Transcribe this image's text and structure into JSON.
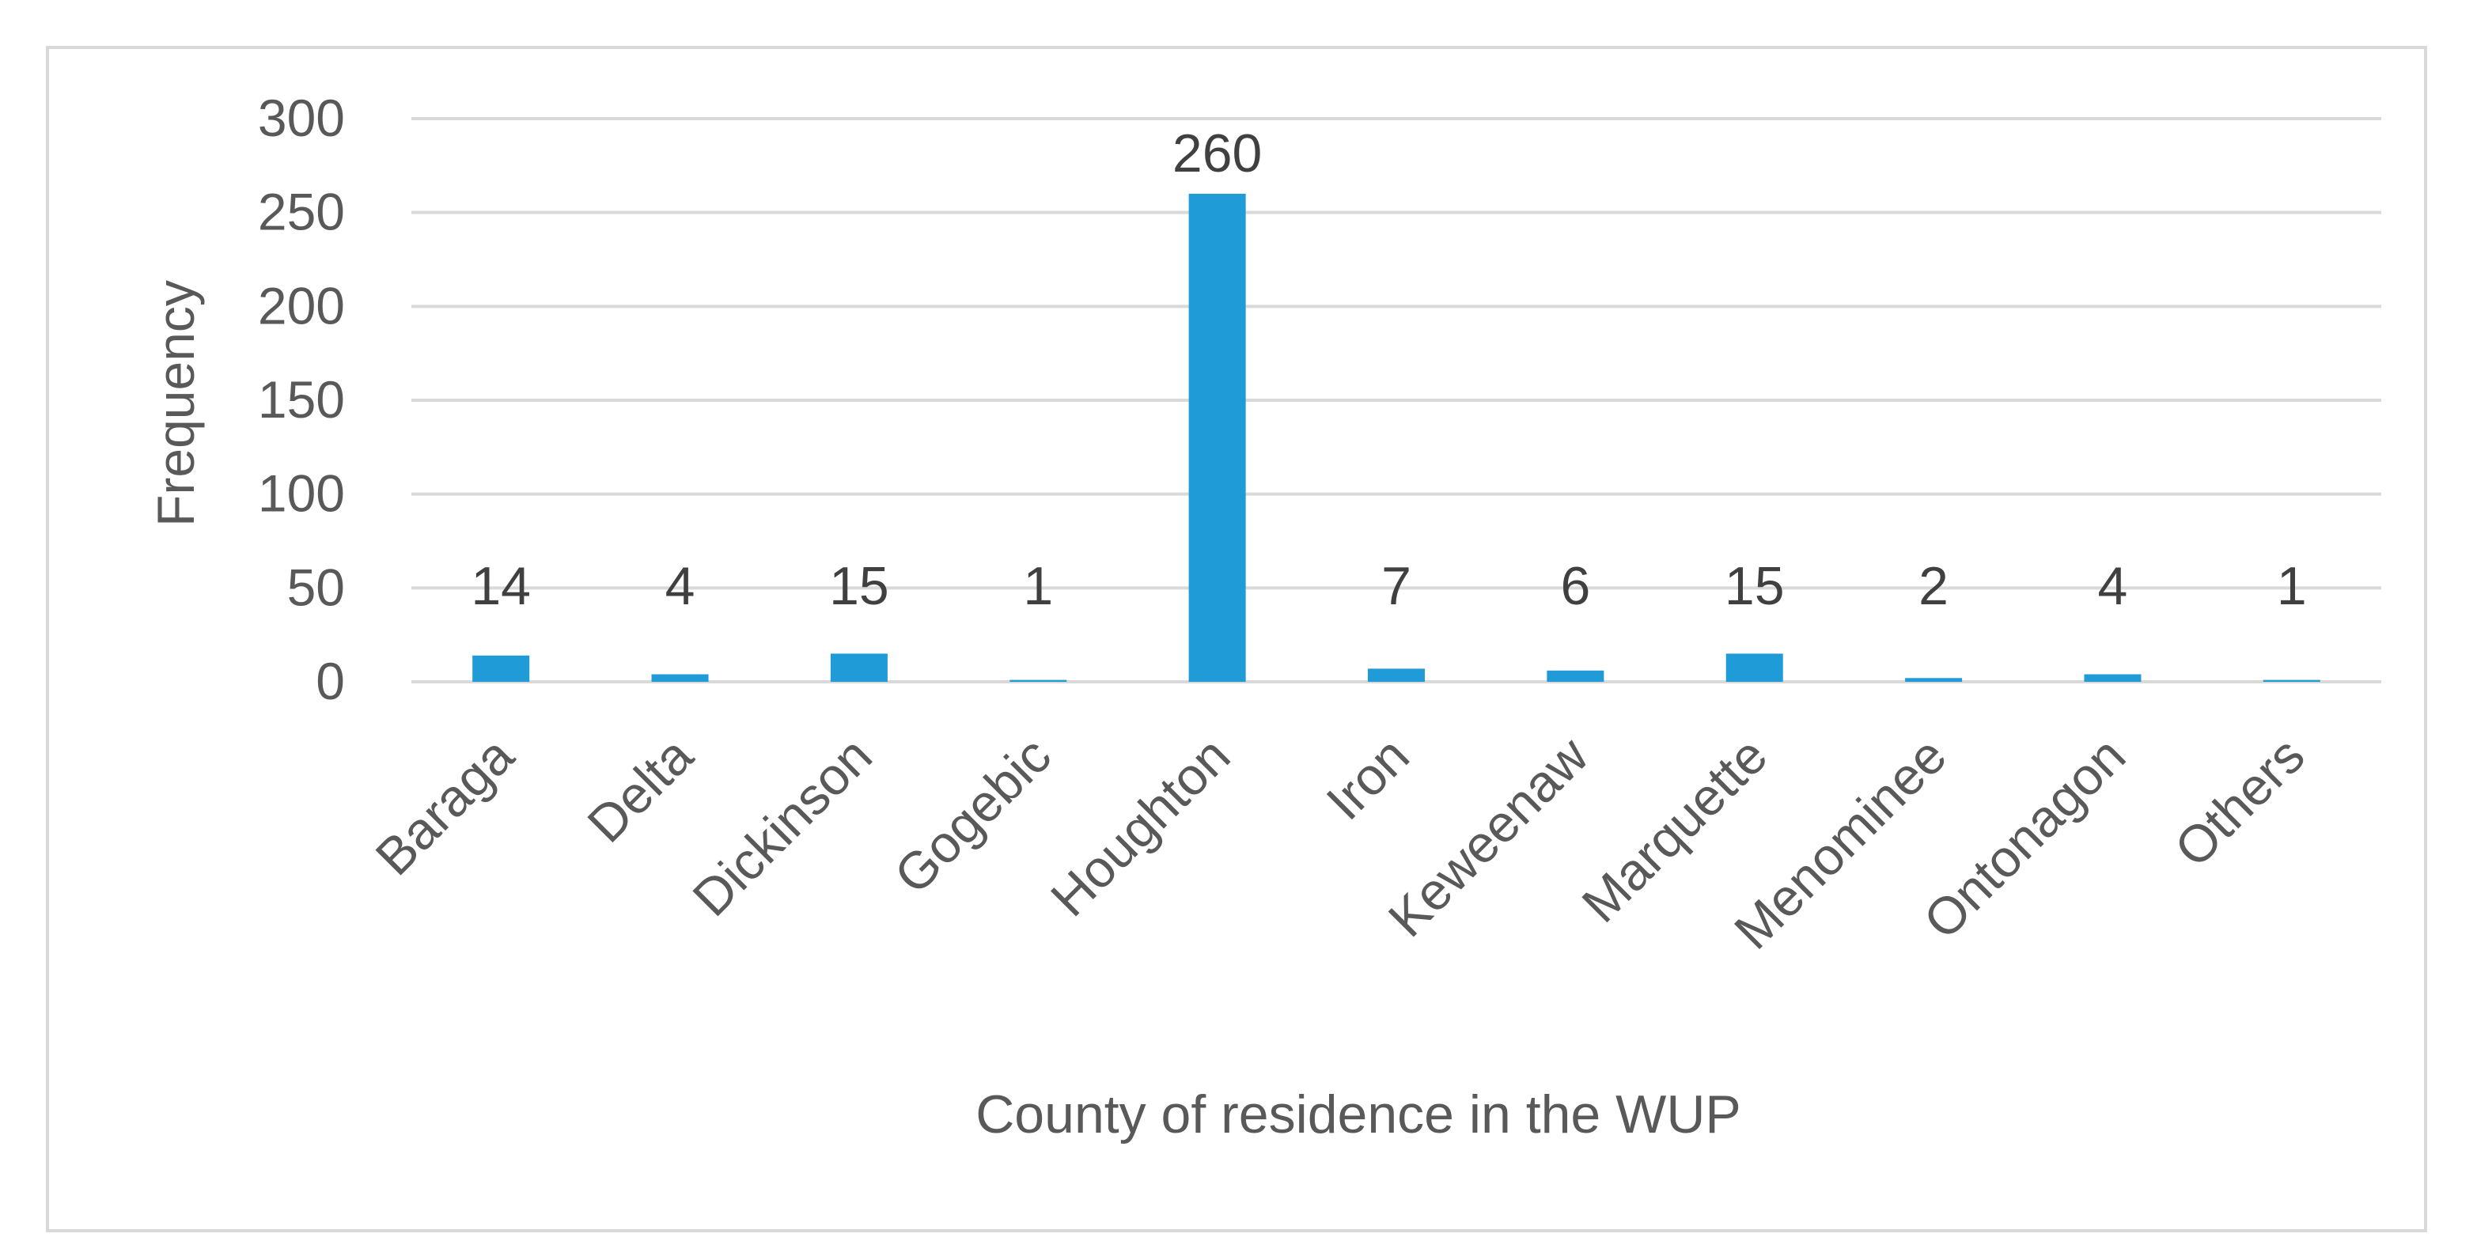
{
  "chart_data": {
    "type": "bar",
    "categories": [
      "Baraga",
      "Delta",
      "Dickinson",
      "Gogebic",
      "Houghton",
      "Iron",
      "Keweenaw",
      "Marquette",
      "Menominee",
      "Ontonagon",
      "Others"
    ],
    "values": [
      14,
      4,
      15,
      1,
      260,
      7,
      6,
      15,
      2,
      4,
      1
    ],
    "data_labels": [
      "14",
      "4",
      "15",
      "1",
      "260",
      "7",
      "6",
      "15",
      "2",
      "4",
      "1"
    ],
    "xlabel": "County of residence in the WUP",
    "ylabel": "Frequency",
    "ylim": [
      0,
      300
    ],
    "yticks": [
      0,
      50,
      100,
      150,
      200,
      250,
      300
    ],
    "grid": true,
    "legend": "none",
    "colors": {
      "bar": "#1f9bd7",
      "grid": "#d9d9d9",
      "text": "#595959",
      "frame": "#d9d9d9"
    }
  }
}
